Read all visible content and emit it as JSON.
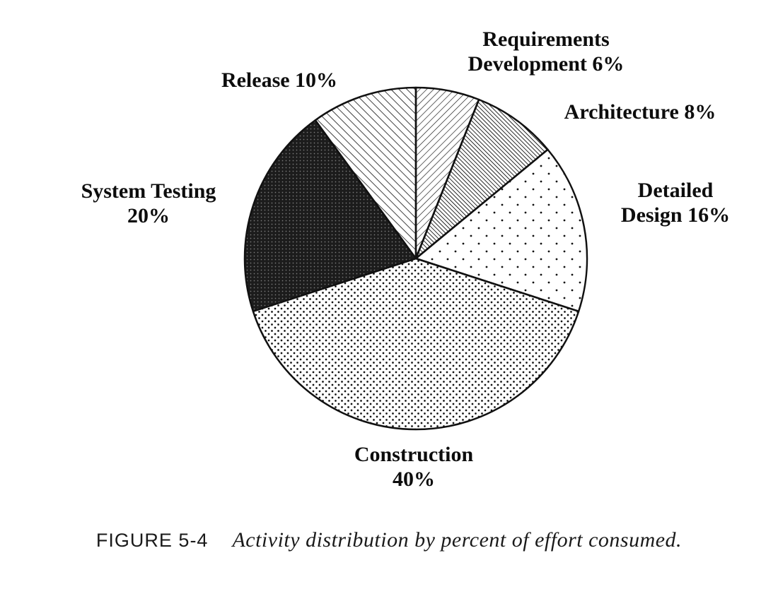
{
  "colors": {
    "ink": "#111111",
    "background": "#ffffff"
  },
  "chart_data": {
    "type": "pie",
    "title": "Activity distribution by percent of effort consumed",
    "unit": "percent of effort",
    "direction": "clockwise",
    "start_angle": "12-oclock",
    "slices": [
      {
        "label": "Requirements Development",
        "value": 6,
        "pattern": "diag-light"
      },
      {
        "label": "Architecture",
        "value": 8,
        "pattern": "diag-dense"
      },
      {
        "label": "Detailed Design",
        "value": 16,
        "pattern": "dots-sparse"
      },
      {
        "label": "Construction",
        "value": 40,
        "pattern": "dots-dense"
      },
      {
        "label": "System Testing",
        "value": 20,
        "pattern": "dark-stipple"
      },
      {
        "label": "Release",
        "value": 10,
        "pattern": "diag-light-2"
      }
    ]
  },
  "labels": {
    "requirements": {
      "line1": "Requirements",
      "line2": "Development 6%"
    },
    "architecture": {
      "line1": "Architecture 8%"
    },
    "detailed_design": {
      "line1": "Detailed",
      "line2": "Design 16%"
    },
    "system_testing": {
      "line1": "System Testing",
      "line2": "20%"
    },
    "release": {
      "line1": "Release 10%"
    },
    "construction": {
      "line1": "Construction",
      "line2": "40%"
    }
  },
  "caption": {
    "figure": "FIGURE 5-4",
    "text": "Activity distribution by percent of effort consumed."
  }
}
